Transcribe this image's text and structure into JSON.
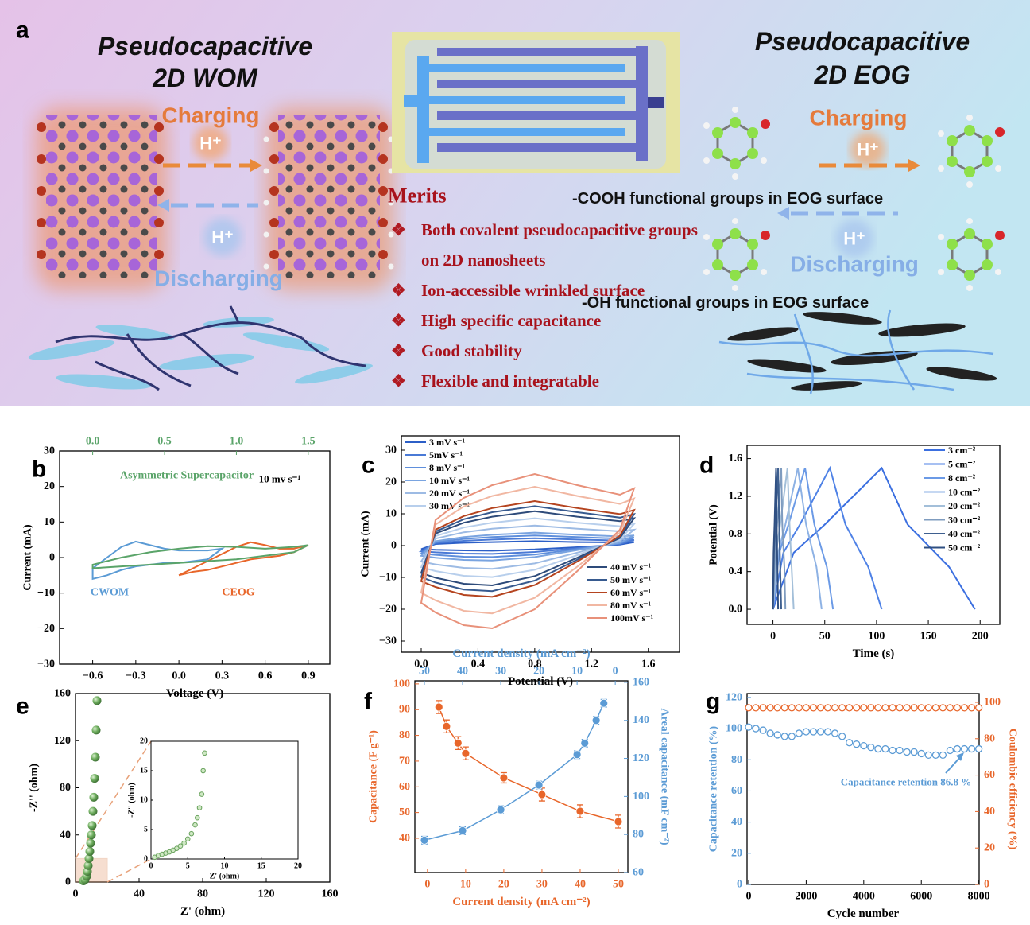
{
  "panel_a": {
    "label": "a",
    "left": {
      "title": [
        "Pseudocapacitive",
        "2D WOM"
      ],
      "charging": "Charging",
      "ion_charge": "H⁺",
      "ion_discharge": "H⁺",
      "discharging": "Discharging"
    },
    "right": {
      "title": [
        "Pseudocapacitive",
        "2D EOG"
      ],
      "charging": "Charging",
      "ion_charge": "H⁺",
      "ion_discharge": "H⁺",
      "discharging": "Discharging",
      "cooh": "-COOH functional groups in EOG surface",
      "oh": "-OH functional groups in EOG surface"
    },
    "merits": {
      "title": "Merits",
      "items": [
        "Both covalent pseudocapacitive groups on 2D nanosheets",
        "Ion-accessible wrinkled  surface",
        "High specific capacitance",
        "Good stability",
        "Flexible and integratable"
      ]
    }
  },
  "chart_data": [
    {
      "label": "b",
      "type": "line",
      "xlim": [
        -0.83,
        1.05
      ],
      "xticks": [
        {
          "value": -0.6,
          "label": "−0.6"
        },
        {
          "value": -0.3,
          "label": "−0.3"
        },
        {
          "value": 0,
          "label": "0.0"
        },
        0.3,
        0.6,
        0.9
      ],
      "x2lim": [
        -0.23,
        1.65
      ],
      "x2ticks": [
        {
          "value": 0,
          "label": "0.0"
        },
        0.5,
        {
          "value": 1,
          "label": "1.0"
        },
        1.5
      ],
      "ylim": [
        -30,
        30
      ],
      "yticks": [
        {
          "value": -30,
          "label": "−30"
        },
        {
          "value": -20,
          "label": "−20"
        },
        {
          "value": -10,
          "label": "−10"
        },
        0,
        10,
        20,
        30
      ],
      "xlabel": "Voltage (V)",
      "ylabel": "Current (mA)",
      "axis_colors": {
        "x2": "#5aa469"
      },
      "annotations": [
        {
          "text": "10 mv s⁻¹",
          "color": "#000000"
        }
      ],
      "series": [
        {
          "name": "CWOM",
          "color": "#5b9bd5",
          "x": [
            -0.6,
            -0.5,
            -0.4,
            -0.3,
            -0.2,
            -0.1,
            0,
            0.1,
            0.2,
            0.3,
            0.2,
            0.1,
            0,
            -0.1,
            -0.2,
            -0.3,
            -0.4,
            -0.5,
            -0.6
          ],
          "values": [
            -3,
            0,
            3,
            4.5,
            3.5,
            2.5,
            2,
            2,
            2,
            2.5,
            -0.5,
            -1,
            -1.5,
            -1.5,
            -2,
            -2.5,
            -3.5,
            -5,
            -6
          ]
        },
        {
          "name": "CEOG",
          "color": "#e8662a",
          "x": [
            0,
            0.1,
            0.2,
            0.3,
            0.4,
            0.5,
            0.6,
            0.7,
            0.8,
            0.9,
            0.8,
            0.7,
            0.6,
            0.5,
            0.4,
            0.3,
            0.2,
            0.1,
            0
          ],
          "values": [
            -5,
            -3,
            -1,
            1,
            3,
            4.3,
            3.5,
            2.5,
            2.5,
            3.5,
            1.5,
            0.5,
            0,
            -0.5,
            -1.5,
            -2.5,
            -3.5,
            -4,
            -5
          ]
        },
        {
          "name": "Asymmetric Supercapacitor",
          "color": "#5aa469",
          "xaxis": "x2",
          "x": [
            0,
            0.2,
            0.4,
            0.6,
            0.8,
            1,
            1.2,
            1.4,
            1.5,
            1.4,
            1.2,
            1,
            0.8,
            0.6,
            0.4,
            0.2,
            0
          ],
          "values": [
            -2,
            0,
            1.5,
            2.5,
            3.2,
            3,
            2.5,
            3,
            3.5,
            1.5,
            0.5,
            -0.5,
            -1,
            -1.5,
            -2,
            -2.5,
            -3
          ]
        }
      ]
    },
    {
      "label": "c",
      "type": "line",
      "xlim": [
        -0.14,
        1.82
      ],
      "xticks": [
        {
          "value": 0,
          "label": "0.0"
        },
        0.4,
        0.8,
        1.2,
        1.6
      ],
      "ylim": [
        -33.5,
        34.5
      ],
      "yticks": [
        {
          "value": -30,
          "label": "−30"
        },
        {
          "value": -20,
          "label": "−20"
        },
        {
          "value": -10,
          "label": "−10"
        },
        0,
        10,
        20,
        30
      ],
      "xlabel": "Potential (V)",
      "ylabel": "Current (mA)",
      "legend": "upper-left",
      "x": [
        0,
        0.1,
        0.3,
        0.5,
        0.8,
        1.1,
        1.4,
        1.5,
        1.4,
        1.1,
        0.8,
        0.5,
        0.3,
        0.1,
        0
      ],
      "series": [
        {
          "name": "3 mV s⁻¹",
          "color": "#2c5fc7",
          "values": [
            -1.1,
            0.5,
            0.9,
            1.1,
            1.4,
            1.1,
            1,
            1.1,
            0.3,
            -0.5,
            -1.2,
            -1.6,
            -1.5,
            -1.3,
            -1.1
          ]
        },
        {
          "name": "5mV s⁻¹",
          "color": "#4a7ad6",
          "values": [
            -1.8,
            0.8,
            1.5,
            1.9,
            2.3,
            1.9,
            1.6,
            1.8,
            0.5,
            -0.8,
            -2,
            -2.6,
            -2.5,
            -2.1,
            -1.8
          ]
        },
        {
          "name": "8 mV s⁻¹",
          "color": "#5f8fdc",
          "values": [
            -2.5,
            1.1,
            2.1,
            2.7,
            3.2,
            2.7,
            2.2,
            2.5,
            0.7,
            -1.1,
            -2.8,
            -3.6,
            -3.5,
            -2.9,
            -2.5
          ]
        },
        {
          "name": "10 mV s⁻¹",
          "color": "#7aa4e0",
          "values": [
            -3.2,
            1.4,
            2.7,
            3.4,
            4.1,
            3.4,
            2.9,
            3.2,
            0.9,
            -1.4,
            -3.6,
            -4.7,
            -4.5,
            -3.8,
            -3.2
          ]
        },
        {
          "name": "20 mV s⁻¹",
          "color": "#9dbbe4",
          "values": [
            -5,
            2.2,
            4.2,
            5.3,
            6.3,
            5.3,
            4.5,
            5,
            1.4,
            -2.2,
            -5.6,
            -7.3,
            -7,
            -5.9,
            -5
          ]
        },
        {
          "name": "30 mV s⁻¹",
          "color": "#b8cfec",
          "values": [
            -6.8,
            3,
            5.7,
            7.2,
            8.6,
            7.2,
            6.1,
            6.8,
            1.9,
            -3,
            -7.6,
            -9.9,
            -9.5,
            -8,
            -6.8
          ]
        },
        {
          "name": "40 mV s⁻¹",
          "color": "#2e4b7a",
          "values": [
            -8.6,
            3.8,
            7.2,
            9.1,
            10.8,
            9.1,
            7.7,
            8.6,
            2.4,
            -3.8,
            -9.6,
            -12.5,
            -12,
            -10.1,
            -8.6
          ]
        },
        {
          "name": "50 mV s⁻¹",
          "color": "#375a8f",
          "values": [
            -9.9,
            4.4,
            8.3,
            10.5,
            12.4,
            10.5,
            8.8,
            9.9,
            2.8,
            -4.4,
            -11,
            -14.3,
            -13.8,
            -11.6,
            -9.9
          ]
        },
        {
          "name": "60 mV s⁻¹",
          "color": "#b5441f",
          "values": [
            -11.2,
            5,
            9.3,
            11.8,
            14,
            11.8,
            9.9,
            11.2,
            3.1,
            -5,
            -12.4,
            -16.1,
            -15.5,
            -13,
            -11.2
          ]
        },
        {
          "name": "80 mV s⁻¹",
          "color": "#f1b7a2",
          "values": [
            -14.8,
            6.6,
            12.3,
            15.6,
            18.5,
            15.6,
            13.1,
            14.8,
            4.1,
            -6.6,
            -16.4,
            -21.3,
            -20.5,
            -17.2,
            -14.8
          ]
        },
        {
          "name": "100mV s⁻¹",
          "color": "#e8917a",
          "values": [
            -18,
            8,
            15,
            19,
            22.5,
            19,
            16,
            18,
            5,
            -8,
            -20,
            -26,
            -25,
            -21,
            -18
          ]
        }
      ]
    },
    {
      "label": "d",
      "type": "line",
      "xlim": [
        -25,
        219
      ],
      "xticks": [
        0,
        50,
        100,
        150,
        200
      ],
      "ylim": [
        -0.16,
        1.74
      ],
      "yticks": [
        {
          "value": 0,
          "label": "0.0"
        },
        0.4,
        0.8,
        1.2,
        1.6
      ],
      "xlabel": "Time (s)",
      "ylabel": "Potential (V)",
      "legend": "upper-right",
      "series": [
        {
          "name": "3 cm⁻²",
          "color": "#3b6fe0",
          "x": [
            0,
            20,
            50,
            105,
            130,
            170,
            195
          ],
          "values": [
            0,
            0.6,
            0.9,
            1.5,
            0.9,
            0.45,
            0
          ]
        },
        {
          "name": "5 cm⁻²",
          "color": "#4f82e6",
          "x": [
            0,
            10,
            26,
            55,
            70,
            92,
            105
          ],
          "values": [
            0,
            0.6,
            0.9,
            1.5,
            0.9,
            0.45,
            0
          ]
        },
        {
          "name": "8 cm⁻²",
          "color": "#6b9ae6",
          "x": [
            0,
            6,
            15,
            31,
            40,
            52,
            58
          ],
          "values": [
            0,
            0.6,
            0.9,
            1.5,
            0.9,
            0.45,
            0
          ]
        },
        {
          "name": "10 cm⁻²",
          "color": "#8eb2e4",
          "x": [
            0,
            5,
            12,
            24,
            32,
            42,
            47
          ],
          "values": [
            0,
            0.6,
            0.9,
            1.5,
            0.9,
            0.45,
            0
          ]
        },
        {
          "name": "20 cm⁻²",
          "color": "#a3bfd9",
          "x": [
            0,
            3,
            7,
            14,
            16,
            18,
            20
          ],
          "values": [
            0,
            0.6,
            0.9,
            1.5,
            0.9,
            0.45,
            0
          ]
        },
        {
          "name": "30 cm⁻²",
          "color": "#7f9cbf",
          "x": [
            0,
            2,
            4,
            8,
            9,
            11,
            12
          ],
          "values": [
            0,
            0.6,
            0.9,
            1.5,
            0.9,
            0.45,
            0
          ]
        },
        {
          "name": "40 cm⁻²",
          "color": "#3e5f8f",
          "x": [
            0,
            1,
            2.5,
            5,
            6,
            7,
            8
          ],
          "values": [
            0,
            0.6,
            0.9,
            1.5,
            0.9,
            0.45,
            0
          ]
        },
        {
          "name": "50 cm⁻²",
          "color": "#2f4f82",
          "x": [
            0,
            0.6,
            1.5,
            3,
            3.6,
            4.3,
            5
          ],
          "values": [
            0,
            0.6,
            0.9,
            1.5,
            0.9,
            0.45,
            0
          ]
        }
      ]
    },
    {
      "label": "e",
      "type": "scatter",
      "xlim": [
        0,
        160
      ],
      "xticks": [
        0,
        40,
        80,
        120,
        160
      ],
      "ylim": [
        0,
        160
      ],
      "yticks": [
        0,
        40,
        80,
        120,
        160
      ],
      "xlabel": "Z' (ohm)",
      "ylabel": "-Z'' (ohm)",
      "series": [
        {
          "color": "#6aa35e",
          "marker": "sphere",
          "x": [
            5,
            6,
            7,
            7.5,
            8,
            8.5,
            9,
            9.5,
            10,
            10.5,
            11,
            11.5,
            12,
            12.5,
            13,
            13.5
          ],
          "values": [
            1,
            2,
            5,
            9,
            14,
            20,
            26,
            33,
            40,
            48,
            60,
            72,
            88,
            106,
            129,
            154
          ]
        }
      ],
      "inset": {
        "xlim": [
          0,
          20
        ],
        "xticks": [
          0,
          5,
          10,
          15,
          20
        ],
        "ylim": [
          0,
          20
        ],
        "yticks": [
          0,
          5,
          10,
          15,
          20
        ],
        "xlabel": "Z' (ohm)",
        "ylabel": "-Z'' (ohm)",
        "color": "#6aa35e",
        "x": [
          0.5,
          1,
          1.5,
          2,
          2.5,
          3,
          3.5,
          4,
          4.5,
          5,
          5.5,
          6,
          6.3,
          6.6,
          6.9,
          7.1,
          7.3
        ],
        "values": [
          0.3,
          0.6,
          0.8,
          1,
          1.2,
          1.5,
          1.8,
          2.2,
          2.7,
          3.4,
          4.3,
          5.8,
          7,
          8.7,
          11,
          15,
          18
        ]
      }
    },
    {
      "label": "f",
      "type": "scatter",
      "xlim": [
        -3.3,
        52.5
      ],
      "xticks": [
        0,
        10,
        20,
        30,
        40,
        50
      ],
      "x2lim": [
        52.5,
        -3.3
      ],
      "x2ticks": [
        50,
        40,
        30,
        20,
        10,
        0
      ],
      "ylim": [
        26.7,
        101.2
      ],
      "yticks": [
        40,
        50,
        60,
        70,
        80,
        90,
        100
      ],
      "y2lim": [
        60,
        160.8
      ],
      "y2ticks": [
        60,
        80,
        100,
        120,
        140,
        160
      ],
      "xlabel": "Current density (mA cm⁻²)",
      "x2label": "Current density (mA cm⁻²)",
      "ylabel": "Capacitance (F g⁻¹)",
      "y2label": "Areal capacitance (mF cm⁻²)",
      "axis_colors": {
        "x": "#e8662a",
        "y": "#e8662a",
        "x2": "#5b9bd5",
        "y2": "#5b9bd5"
      },
      "series": [
        {
          "color": "#e8662a",
          "marker": "filled",
          "line": true,
          "x": [
            3,
            5,
            8,
            10,
            20,
            30,
            40,
            50
          ],
          "values": [
            91,
            83.5,
            77,
            73,
            63.5,
            57,
            50.5,
            46.5
          ],
          "errors": [
            2.5,
            2.5,
            2.5,
            2.5,
            2,
            2.5,
            2.5,
            2.5
          ]
        },
        {
          "color": "#5b9bd5",
          "marker": "filled",
          "line": true,
          "xaxis": "x2",
          "axis": "y2",
          "x": [
            50,
            40,
            30,
            20,
            10,
            8,
            5,
            3
          ],
          "values": [
            77,
            82,
            93,
            106,
            122,
            128,
            140,
            149
          ],
          "errors": [
            2,
            2,
            2,
            2,
            2,
            2,
            2,
            2
          ]
        }
      ]
    },
    {
      "label": "g",
      "type": "scatter",
      "xlim": [
        -55,
        8010
      ],
      "xticks": [
        0,
        2000,
        4000,
        6000,
        8000
      ],
      "ylim": [
        0,
        122.5
      ],
      "yticks": [
        0,
        20,
        40,
        60,
        80,
        100,
        120
      ],
      "y2lim": [
        0,
        104.8
      ],
      "y2ticks": [
        0,
        20,
        40,
        60,
        80,
        100
      ],
      "xlabel": "Cycle number",
      "ylabel": "Capacitance retention (%)",
      "y2label": "Coulombic efficiency (%)",
      "axis_colors": {
        "y": "#5b9bd5",
        "y2": "#e8662a"
      },
      "annotations": [
        {
          "text": "Capacitance retention 86.8 %",
          "color": "#5b9bd5"
        }
      ],
      "x": [
        0,
        250,
        500,
        750,
        1000,
        1250,
        1500,
        1750,
        2000,
        2250,
        2500,
        2750,
        3000,
        3250,
        3500,
        3750,
        4000,
        4250,
        4500,
        4750,
        5000,
        5250,
        5500,
        5750,
        6000,
        6250,
        6500,
        6750,
        7000,
        7250,
        7500,
        7750,
        8000
      ],
      "series": [
        {
          "color": "#5b9bd5",
          "marker": "open",
          "values": [
            101,
            100,
            99,
            97,
            96,
            95,
            95,
            97,
            98,
            98,
            98,
            98,
            97,
            95,
            91,
            90,
            89,
            88,
            87,
            87,
            86,
            86,
            85,
            85,
            84,
            83,
            83,
            83,
            86,
            87,
            87,
            87,
            87
          ]
        },
        {
          "color": "#e8662a",
          "marker": "open",
          "axis": "y2",
          "values": [
            97,
            97,
            97,
            97,
            97,
            97,
            97,
            97,
            97,
            97,
            97,
            97,
            97,
            97,
            97,
            97,
            97,
            97,
            97,
            97,
            97,
            97,
            97,
            97,
            97,
            97,
            97,
            97,
            97,
            97,
            97,
            97,
            97
          ]
        }
      ]
    }
  ]
}
